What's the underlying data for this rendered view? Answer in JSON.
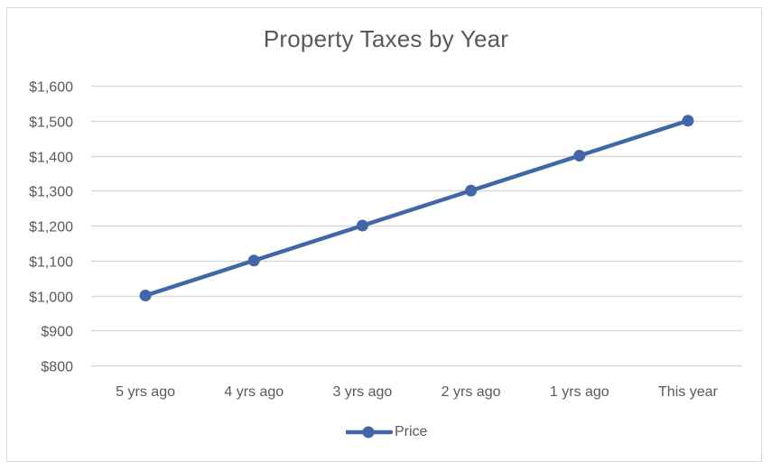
{
  "chart_data": {
    "type": "line",
    "title": "Property Taxes by Year",
    "xlabel": "",
    "ylabel": "",
    "categories": [
      "5 yrs ago",
      "4 yrs ago",
      "3 yrs ago",
      "2 yrs ago",
      "1 yrs ago",
      "This year"
    ],
    "series": [
      {
        "name": "Price",
        "values": [
          1000,
          1100,
          1200,
          1300,
          1400,
          1500
        ],
        "color": "#4167a8",
        "marker": "circle"
      }
    ],
    "ylim": [
      800,
      1600
    ],
    "y_ticks": [
      800,
      900,
      1000,
      1100,
      1200,
      1300,
      1400,
      1500,
      1600
    ],
    "y_tick_labels": [
      "$800",
      "$900",
      "$1,000",
      "$1,100",
      "$1,200",
      "$1,300",
      "$1,400",
      "$1,500",
      "$1,600"
    ],
    "grid": {
      "horizontal": true,
      "vertical": false,
      "color": "#d9d9d9"
    },
    "legend": {
      "position": "bottom",
      "entries": [
        "Price"
      ]
    }
  },
  "colors": {
    "series": "#4167a8",
    "grid": "#d9d9d9",
    "text": "#595959",
    "border": "#d9d9d9"
  }
}
